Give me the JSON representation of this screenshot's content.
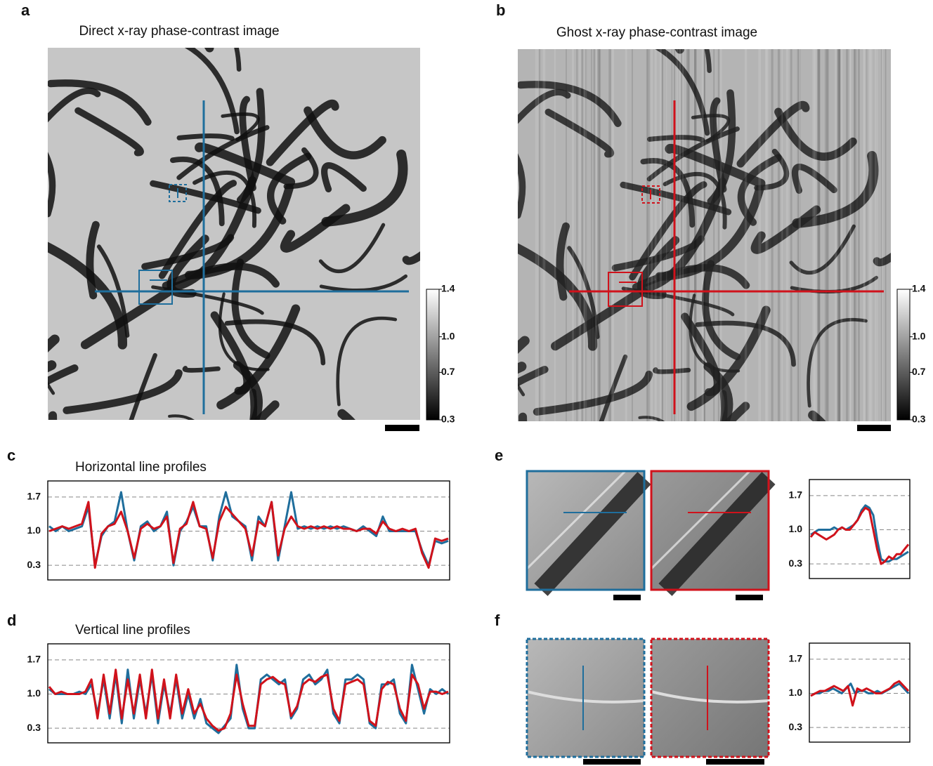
{
  "figure": {
    "panels": [
      {
        "letter": "a",
        "title": "Direct x-ray phase-contrast image",
        "color": "#1f6e9c"
      },
      {
        "letter": "b",
        "title": "Ghost x-ray phase-contrast image",
        "color": "#d0121b"
      }
    ],
    "colorbar": {
      "lim": [
        0.3,
        1.4
      ],
      "ticks": [
        1.4,
        {
          "value": 1,
          "label": "1.0"
        },
        0.7,
        0.3
      ]
    }
  },
  "chart_data": [
    {
      "type": "line",
      "panel": "c",
      "title": "Horizontal line profiles",
      "ylim": [
        0,
        2.03
      ],
      "yticks": [
        1.7,
        {
          "value": 1,
          "label": "1.0"
        },
        0.3
      ],
      "grid": true,
      "series": [
        {
          "color": "#1f6e9c",
          "values": [
            1.1,
            1.0,
            1.1,
            1.0,
            1.05,
            1.1,
            1.5,
            0.3,
            0.9,
            1.1,
            1.2,
            1.8,
            1.0,
            0.4,
            1.1,
            1.2,
            1.0,
            1.1,
            1.4,
            0.3,
            1.0,
            1.2,
            1.5,
            1.1,
            1.1,
            0.4,
            1.3,
            1.8,
            1.3,
            1.2,
            1.1,
            0.4,
            1.3,
            1.1,
            1.6,
            0.4,
            1.1,
            1.8,
            1.05,
            1.1,
            1.05,
            1.1,
            1.05,
            1.1,
            1.05,
            1.1,
            1.05,
            1.0,
            1.1,
            1.0,
            0.9,
            1.3,
            1.0,
            1.0,
            1.0,
            1.0,
            1.0,
            0.6,
            0.3,
            0.8,
            0.75,
            0.8
          ]
        },
        {
          "color": "#d0121b",
          "values": [
            1.0,
            1.05,
            1.1,
            1.05,
            1.1,
            1.15,
            1.6,
            0.25,
            0.95,
            1.1,
            1.15,
            1.4,
            1.0,
            0.45,
            1.05,
            1.15,
            1.05,
            1.1,
            1.3,
            0.35,
            1.05,
            1.15,
            1.6,
            1.1,
            1.05,
            0.45,
            1.2,
            1.5,
            1.35,
            1.2,
            1.05,
            0.5,
            1.2,
            1.1,
            1.6,
            0.5,
            1.05,
            1.3,
            1.1,
            1.05,
            1.1,
            1.05,
            1.1,
            1.05,
            1.1,
            1.05,
            1.05,
            1.0,
            1.05,
            1.05,
            0.95,
            1.2,
            1.05,
            1.0,
            1.05,
            1.0,
            1.05,
            0.55,
            0.25,
            0.85,
            0.8,
            0.85
          ]
        }
      ]
    },
    {
      "type": "line",
      "panel": "d",
      "title": "Vertical line profiles",
      "ylim": [
        0,
        2.03
      ],
      "yticks": [
        1.7,
        {
          "value": 1,
          "label": "1.0"
        },
        0.3
      ],
      "grid": true,
      "series": [
        {
          "color": "#1f6e9c",
          "values": [
            1.1,
            1.0,
            1.0,
            1.0,
            1.0,
            1.05,
            1.0,
            1.2,
            0.6,
            1.3,
            0.5,
            1.4,
            0.4,
            1.5,
            0.5,
            1.3,
            0.6,
            1.4,
            0.4,
            1.2,
            0.6,
            1.3,
            0.5,
            1.0,
            0.5,
            0.9,
            0.4,
            0.3,
            0.2,
            0.35,
            0.5,
            1.6,
            0.7,
            0.3,
            0.3,
            1.3,
            1.4,
            1.3,
            1.2,
            1.3,
            0.5,
            0.7,
            1.3,
            1.4,
            1.2,
            1.3,
            1.5,
            0.6,
            0.4,
            1.3,
            1.3,
            1.4,
            1.3,
            0.4,
            0.3,
            1.2,
            1.2,
            1.3,
            0.6,
            0.4,
            1.6,
            1.1,
            0.6,
            1.1,
            1.0,
            1.1,
            1.0
          ]
        },
        {
          "color": "#d0121b",
          "values": [
            1.15,
            1.0,
            1.05,
            1.0,
            1.0,
            1.0,
            1.05,
            1.3,
            0.5,
            1.4,
            0.6,
            1.5,
            0.5,
            1.3,
            0.6,
            1.4,
            0.5,
            1.5,
            0.5,
            1.3,
            0.5,
            1.4,
            0.6,
            1.1,
            0.6,
            0.8,
            0.5,
            0.35,
            0.25,
            0.3,
            0.6,
            1.4,
            0.8,
            0.35,
            0.35,
            1.2,
            1.3,
            1.35,
            1.25,
            1.2,
            0.55,
            0.75,
            1.2,
            1.3,
            1.25,
            1.35,
            1.4,
            0.7,
            0.45,
            1.2,
            1.25,
            1.3,
            1.2,
            0.45,
            0.35,
            1.1,
            1.25,
            1.2,
            0.7,
            0.45,
            1.4,
            1.2,
            0.7,
            1.05,
            1.05,
            1.0,
            1.05
          ]
        }
      ]
    },
    {
      "type": "line",
      "panel": "e",
      "ylim": [
        0,
        2.03
      ],
      "yticks": [
        1.7,
        {
          "value": 1,
          "label": "1.0"
        },
        0.3
      ],
      "grid": true,
      "series": [
        {
          "color": "#1f6e9c",
          "values": [
            0.9,
            0.95,
            1.0,
            1.0,
            1.0,
            1.0,
            1.05,
            1.0,
            1.05,
            1.0,
            1.05,
            1.1,
            1.2,
            1.4,
            1.5,
            1.45,
            1.3,
            0.8,
            0.4,
            0.35,
            0.35,
            0.4,
            0.4,
            0.45,
            0.5,
            0.55
          ]
        },
        {
          "color": "#d0121b",
          "values": [
            0.85,
            0.95,
            0.9,
            0.85,
            0.8,
            0.85,
            0.9,
            1.0,
            1.05,
            1.0,
            1.0,
            1.1,
            1.2,
            1.35,
            1.45,
            1.4,
            1.0,
            0.6,
            0.3,
            0.35,
            0.45,
            0.4,
            0.5,
            0.5,
            0.6,
            0.7
          ]
        }
      ]
    },
    {
      "type": "line",
      "panel": "f",
      "ylim": [
        0,
        2.03
      ],
      "yticks": [
        1.7,
        {
          "value": 1,
          "label": "1.0"
        },
        0.3
      ],
      "grid": true,
      "series": [
        {
          "color": "#1f6e9c",
          "values": [
            0.95,
            1.0,
            1.0,
            1.05,
            1.05,
            1.1,
            1.05,
            1.0,
            1.1,
            1.2,
            1.0,
            1.05,
            1.05,
            1.0,
            1.0,
            1.05,
            1.0,
            1.05,
            1.1,
            1.15,
            1.2,
            1.1,
            1.0
          ]
        },
        {
          "color": "#d0121b",
          "values": [
            0.95,
            1.0,
            1.05,
            1.05,
            1.1,
            1.15,
            1.1,
            1.05,
            1.15,
            0.75,
            1.1,
            1.05,
            1.1,
            1.05,
            1.0,
            1.0,
            1.05,
            1.1,
            1.2,
            1.25,
            1.15,
            1.05
          ]
        }
      ]
    }
  ]
}
